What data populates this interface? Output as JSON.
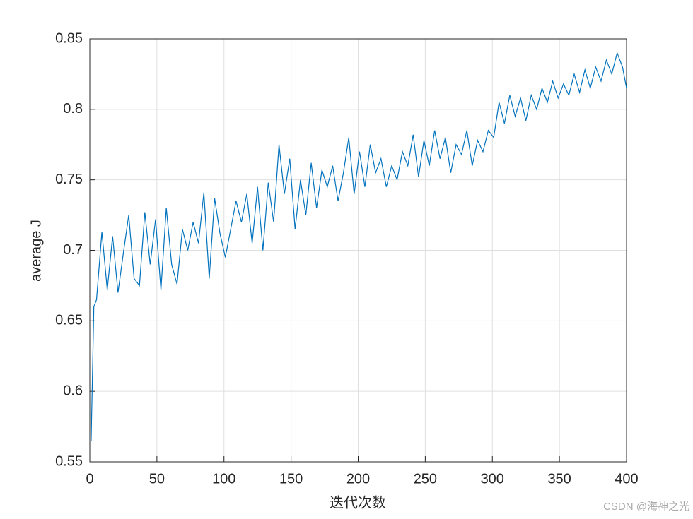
{
  "chart_data": {
    "type": "line",
    "x_label": "迭代次数",
    "y_label": "average J",
    "watermark": "CSDN @海神之光",
    "x": [
      1,
      3,
      5,
      9,
      13,
      17,
      21,
      25,
      29,
      33,
      37,
      41,
      45,
      49,
      53,
      57,
      61,
      65,
      69,
      73,
      77,
      81,
      85,
      89,
      93,
      97,
      101,
      105,
      109,
      113,
      117,
      121,
      125,
      129,
      133,
      137,
      141,
      145,
      149,
      153,
      157,
      161,
      165,
      169,
      173,
      177,
      181,
      185,
      189,
      193,
      197,
      201,
      205,
      209,
      213,
      217,
      221,
      225,
      229,
      233,
      237,
      241,
      245,
      249,
      253,
      257,
      261,
      265,
      269,
      273,
      277,
      281,
      285,
      289,
      293,
      297,
      301,
      305,
      309,
      313,
      317,
      321,
      325,
      329,
      333,
      337,
      341,
      345,
      349,
      353,
      357,
      361,
      365,
      369,
      373,
      377,
      381,
      385,
      389,
      393,
      397,
      400
    ],
    "series": [
      {
        "name": "average J",
        "color": "#0072bd",
        "values": [
          0.565,
          0.66,
          0.665,
          0.713,
          0.672,
          0.71,
          0.67,
          0.698,
          0.725,
          0.68,
          0.675,
          0.727,
          0.69,
          0.722,
          0.672,
          0.73,
          0.69,
          0.676,
          0.715,
          0.7,
          0.72,
          0.705,
          0.741,
          0.68,
          0.737,
          0.712,
          0.695,
          0.715,
          0.735,
          0.72,
          0.74,
          0.705,
          0.745,
          0.7,
          0.748,
          0.72,
          0.775,
          0.74,
          0.765,
          0.715,
          0.75,
          0.725,
          0.762,
          0.73,
          0.757,
          0.745,
          0.76,
          0.735,
          0.755,
          0.78,
          0.74,
          0.77,
          0.745,
          0.775,
          0.755,
          0.765,
          0.745,
          0.76,
          0.75,
          0.77,
          0.76,
          0.782,
          0.752,
          0.778,
          0.76,
          0.785,
          0.765,
          0.78,
          0.755,
          0.775,
          0.768,
          0.785,
          0.76,
          0.778,
          0.77,
          0.785,
          0.78,
          0.805,
          0.79,
          0.81,
          0.795,
          0.808,
          0.792,
          0.81,
          0.8,
          0.815,
          0.805,
          0.82,
          0.808,
          0.818,
          0.81,
          0.825,
          0.812,
          0.828,
          0.815,
          0.83,
          0.82,
          0.835,
          0.825,
          0.84,
          0.83,
          0.815
        ]
      }
    ],
    "xlim": [
      0,
      400
    ],
    "xticks": [
      0,
      50,
      100,
      150,
      200,
      250,
      300,
      350,
      400
    ],
    "ylim": [
      0.55,
      0.85
    ],
    "yticks": [
      0.55,
      0.6,
      0.65,
      0.7,
      0.75,
      0.8,
      0.85
    ],
    "grid": true
  }
}
